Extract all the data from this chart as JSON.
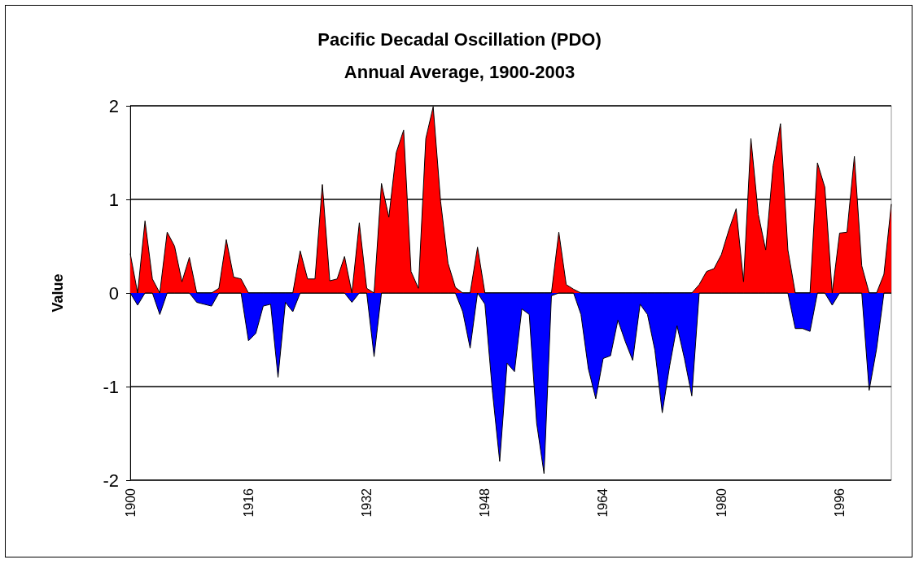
{
  "chart_data": {
    "type": "area",
    "title": "Pacific Decadal Oscillation (PDO)",
    "subtitle": "Annual Average, 1900-2003",
    "ylabel": "Value",
    "categories": [
      "1900",
      null,
      null,
      null,
      null,
      null,
      null,
      null,
      null,
      null,
      null,
      null,
      null,
      null,
      null,
      null,
      "1916",
      null,
      null,
      null,
      null,
      null,
      null,
      null,
      null,
      null,
      null,
      null,
      null,
      null,
      null,
      null,
      "1932",
      null,
      null,
      null,
      null,
      null,
      null,
      null,
      null,
      null,
      null,
      null,
      null,
      null,
      null,
      null,
      "1948",
      null,
      null,
      null,
      null,
      null,
      null,
      null,
      null,
      null,
      null,
      null,
      null,
      null,
      null,
      null,
      "1964",
      null,
      null,
      null,
      null,
      null,
      null,
      null,
      null,
      null,
      null,
      null,
      null,
      null,
      null,
      null,
      "1980",
      null,
      null,
      null,
      null,
      null,
      null,
      null,
      null,
      null,
      null,
      null,
      null,
      null,
      null,
      null,
      "1996",
      null,
      null,
      null,
      null,
      null,
      null,
      null
    ],
    "series": [
      {
        "color": "#ff0000",
        "values": [
          0.42,
          0,
          0.77,
          0.15,
          0,
          0.65,
          0.5,
          0.12,
          0.38,
          0,
          0,
          0,
          0.05,
          0.57,
          0.17,
          0.15,
          0,
          0,
          0,
          0,
          0,
          0,
          0,
          0.45,
          0.15,
          0.15,
          1.16,
          0.13,
          0.15,
          0.39,
          0,
          0.75,
          0.05,
          0,
          1.17,
          0.81,
          1.5,
          1.74,
          0.23,
          0.05,
          1.65,
          1.99,
          0.98,
          0.32,
          0.06,
          0,
          0,
          0.49,
          0,
          0,
          0,
          0,
          0,
          0,
          0,
          0,
          0,
          0,
          0.65,
          0.09,
          0.04,
          0,
          0,
          0,
          0,
          0,
          0,
          0,
          0,
          0,
          0,
          0,
          0,
          0,
          0,
          0,
          0,
          0.09,
          0.23,
          0.26,
          0.41,
          0.67,
          0.9,
          0.12,
          1.65,
          0.84,
          0.46,
          1.36,
          1.81,
          0.46,
          0,
          0,
          0,
          1.39,
          1.13,
          0,
          0.64,
          0.65,
          1.46,
          0.29,
          0,
          0,
          0.2,
          0.95
        ]
      },
      {
        "color": "#0000ff",
        "values": [
          0,
          -0.13,
          0,
          0,
          -0.23,
          0,
          0,
          0,
          0,
          -0.1,
          -0.12,
          -0.14,
          0,
          0,
          0,
          0,
          -0.51,
          -0.43,
          -0.14,
          -0.12,
          -0.9,
          -0.1,
          -0.2,
          0,
          0,
          0,
          0,
          0,
          0,
          0,
          -0.1,
          0,
          0,
          -0.68,
          0,
          0,
          0,
          0,
          0,
          0,
          0,
          0,
          0,
          0,
          0,
          -0.2,
          -0.59,
          0,
          -0.12,
          -1.04,
          -1.8,
          -0.75,
          -0.84,
          -0.17,
          -0.23,
          -1.39,
          -1.93,
          -0.03,
          0,
          0,
          0,
          -0.23,
          -0.81,
          -1.13,
          -0.7,
          -0.67,
          -0.29,
          -0.52,
          -0.72,
          -0.12,
          -0.23,
          -0.61,
          -1.28,
          -0.78,
          -0.35,
          -0.7,
          -1.1,
          0,
          0,
          0,
          0,
          0,
          0,
          0,
          0,
          0,
          0,
          0,
          0,
          0,
          -0.38,
          -0.38,
          -0.41,
          0,
          0,
          -0.13,
          0,
          0,
          0,
          0,
          -1.04,
          -0.6,
          0,
          0
        ]
      }
    ],
    "ylim": [
      -2,
      2
    ],
    "yticks": [
      -2,
      -1,
      0,
      1,
      2
    ],
    "grid": "y"
  }
}
